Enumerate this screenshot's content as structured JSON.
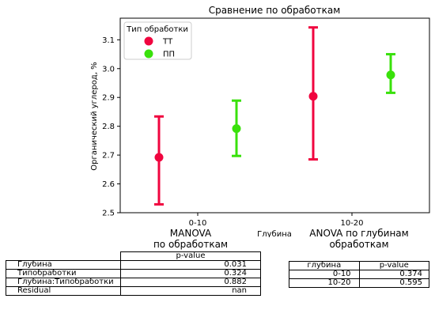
{
  "chart_data": {
    "type": "scatter",
    "title": "Сравнение по обработкам",
    "xlabel": "Глубина",
    "ylabel": "Органический углерод, %",
    "categories": [
      "0-10",
      "10-20"
    ],
    "ylim": [
      2.5,
      3.175
    ],
    "yticks": [
      "2.5",
      "2.6",
      "2.7",
      "2.8",
      "2.9",
      "3.0",
      "3.1"
    ],
    "legend_title": "Тип обработки",
    "legend_position": "top-left",
    "grid": false,
    "series": [
      {
        "name": "ТТ",
        "color": "#f0053f",
        "values": [
          2.692,
          2.904
        ],
        "lower": [
          2.529,
          2.685
        ],
        "upper": [
          2.834,
          3.143
        ]
      },
      {
        "name": "ПП",
        "color": "#39e10b",
        "values": [
          2.792,
          2.978
        ],
        "lower": [
          2.697,
          2.916
        ],
        "upper": [
          2.889,
          3.05
        ]
      }
    ]
  },
  "manova_table": {
    "title_line1": "MANOVA",
    "title_line2": "по обработкам",
    "header": "p-value",
    "rows": [
      {
        "label": "Глубина",
        "value": "0.031"
      },
      {
        "label": "Типобработки",
        "value": "0.324"
      },
      {
        "label": "Глубина:Типобработки",
        "value": "0.882"
      },
      {
        "label": "Residual",
        "value": "nan"
      }
    ]
  },
  "anova_table": {
    "title_line1": "ANOVA по глубинам",
    "title_line2": "обработкам",
    "header_depth": "глубина",
    "header_p": "p-value",
    "rows": [
      {
        "depth": "0-10",
        "value": "0.374"
      },
      {
        "depth": "10-20",
        "value": "0.595"
      }
    ]
  }
}
